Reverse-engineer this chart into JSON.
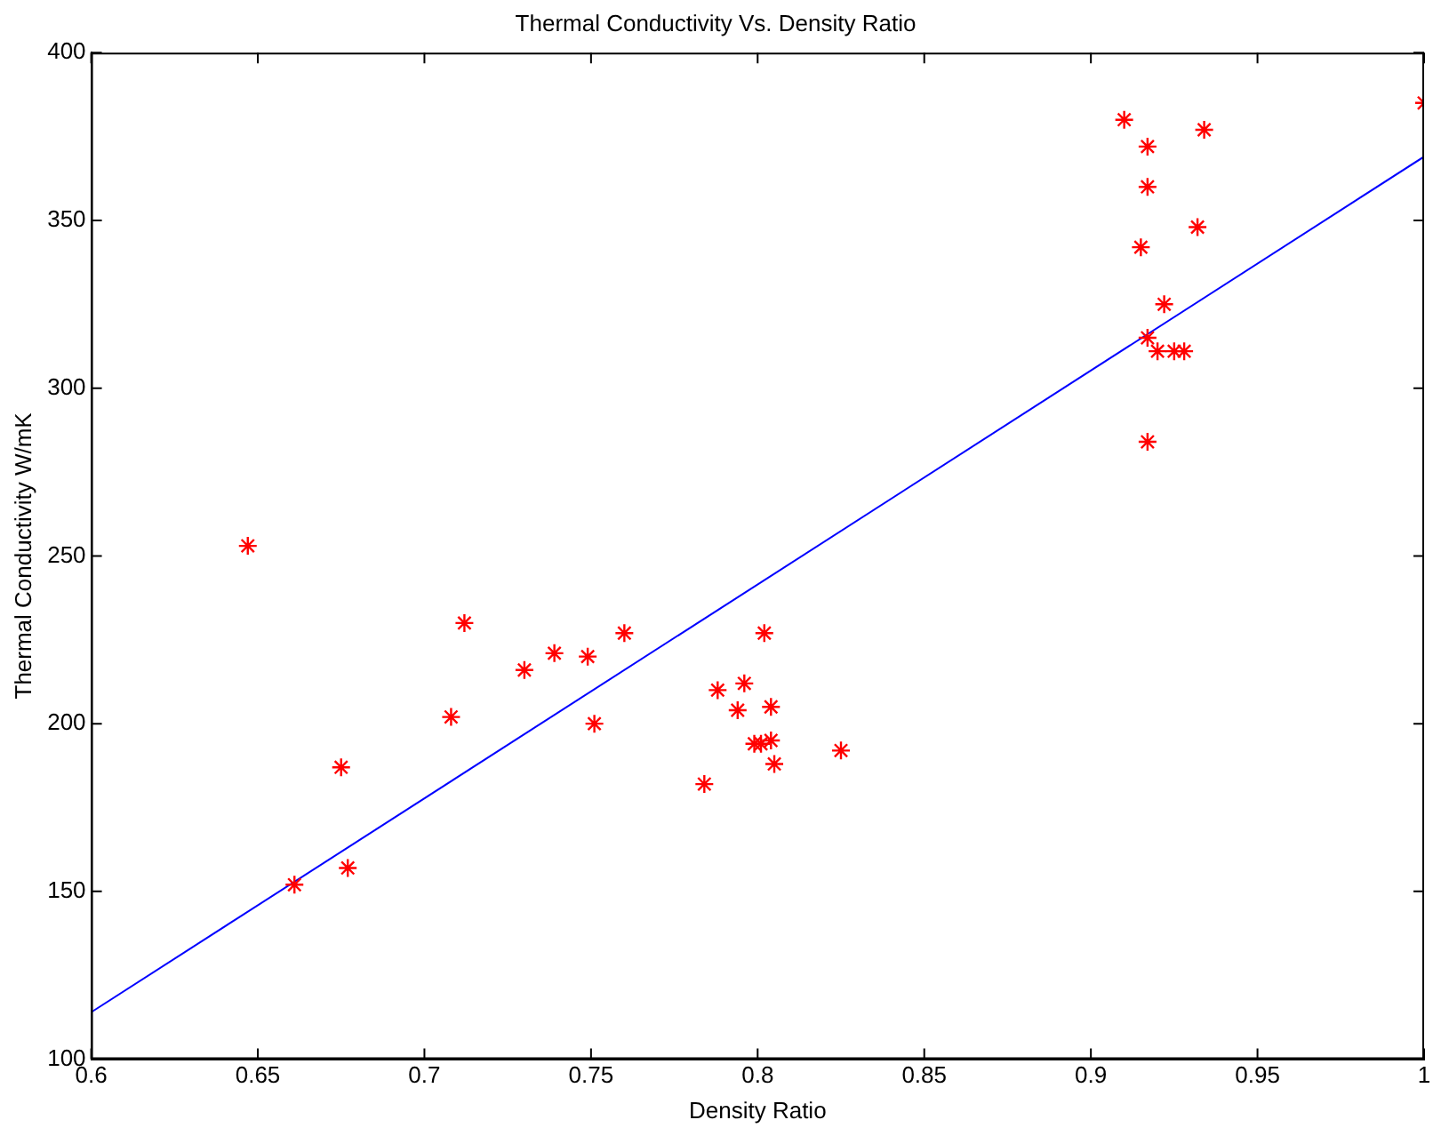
{
  "chart_data": {
    "type": "scatter",
    "title": "Thermal Conductivity Vs. Density Ratio",
    "xlabel": "Density Ratio",
    "ylabel": "Thermal Conductivity W/mK",
    "xlim": [
      0.6,
      1
    ],
    "xticks": [
      0.6,
      0.65,
      0.7,
      0.75,
      0.8,
      0.85,
      0.9,
      0.95,
      1
    ],
    "ylim": [
      100,
      400
    ],
    "yticks": [
      100,
      150,
      200,
      250,
      300,
      350,
      400
    ],
    "grid": false,
    "legend": false,
    "marker": "cross",
    "series": [
      {
        "color": "#ff0000",
        "x": [
          0.647,
          0.661,
          0.675,
          0.677,
          0.708,
          0.712,
          0.73,
          0.739,
          0.749,
          0.751,
          0.76,
          0.784,
          0.788,
          0.794,
          0.796,
          0.802,
          0.799,
          0.801,
          0.804,
          0.804,
          0.805,
          0.825,
          0.91,
          0.917,
          0.934,
          0.917,
          0.932,
          0.915,
          0.922,
          0.917,
          0.92,
          0.925,
          0.928,
          0.917,
          1.0
        ],
        "values": [
          253,
          152,
          187,
          157,
          202,
          230,
          216,
          221,
          220,
          200,
          227,
          182,
          210,
          204,
          212,
          227,
          194,
          194,
          195,
          205,
          188,
          192,
          380,
          372,
          377,
          360,
          348,
          342,
          325,
          315,
          311,
          311,
          311,
          284,
          385
        ]
      },
      {
        "type": "line",
        "color": "#0000ff",
        "marker": "none",
        "x": [
          0.6,
          1
        ],
        "values": [
          114,
          369
        ]
      }
    ]
  }
}
